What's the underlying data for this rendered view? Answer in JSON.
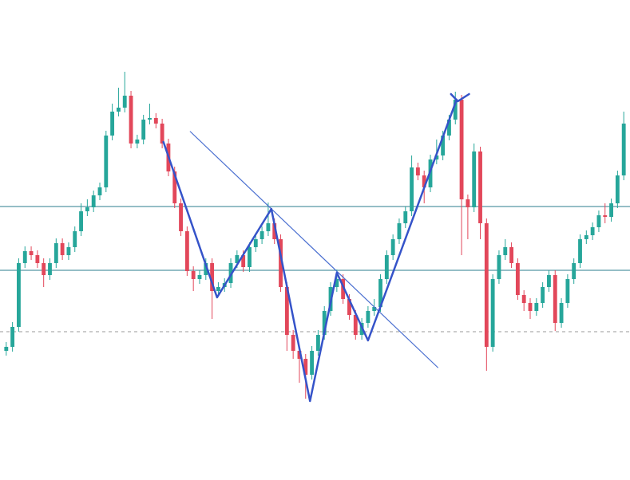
{
  "chart_data": {
    "type": "candlestick",
    "up_color": "#26a69a",
    "down_color": "#e2475a",
    "xlim": [
      -1,
      100
    ],
    "ylim": [
      0,
      600
    ],
    "open": [
      160,
      165,
      190,
      270,
      285,
      280,
      270,
      255,
      270,
      295,
      280,
      290,
      310,
      335,
      340,
      355,
      365,
      430,
      460,
      465,
      480,
      420,
      425,
      450,
      452,
      445,
      420,
      385,
      345,
      310,
      260,
      250,
      255,
      270,
      235,
      240,
      245,
      270,
      280,
      265,
      290,
      300,
      310,
      320,
      300,
      240,
      180,
      160,
      150,
      130,
      160,
      180,
      210,
      240,
      250,
      225,
      205,
      180,
      195,
      210,
      215,
      250,
      280,
      300,
      320,
      335,
      390,
      380,
      365,
      400,
      405,
      430,
      450,
      475,
      350,
      340,
      410,
      320,
      165,
      250,
      280,
      290,
      270,
      230,
      220,
      210,
      220,
      240,
      255,
      195,
      220,
      250,
      270,
      300,
      305,
      315,
      330,
      328,
      345,
      380
    ],
    "high": [
      171,
      196,
      276,
      291,
      291,
      286,
      276,
      276,
      301,
      301,
      296,
      316,
      345,
      350,
      361,
      371,
      436,
      470,
      490,
      510,
      486,
      431,
      456,
      470,
      458,
      451,
      426,
      391,
      351,
      316,
      266,
      261,
      276,
      276,
      246,
      251,
      276,
      286,
      286,
      296,
      306,
      316,
      346,
      326,
      306,
      246,
      186,
      166,
      156,
      166,
      186,
      216,
      246,
      262,
      256,
      231,
      211,
      201,
      216,
      225,
      256,
      286,
      306,
      326,
      341,
      405,
      396,
      386,
      406,
      425,
      436,
      456,
      485,
      481,
      356,
      420,
      416,
      326,
      256,
      286,
      300,
      296,
      276,
      236,
      226,
      226,
      246,
      261,
      261,
      226,
      256,
      276,
      306,
      311,
      321,
      336,
      345,
      351,
      386,
      460
    ],
    "low": [
      154,
      159,
      184,
      264,
      274,
      264,
      240,
      249,
      264,
      274,
      274,
      284,
      304,
      329,
      334,
      349,
      359,
      424,
      454,
      459,
      414,
      414,
      419,
      444,
      439,
      414,
      379,
      339,
      304,
      254,
      235,
      244,
      249,
      200,
      229,
      234,
      239,
      264,
      259,
      259,
      284,
      294,
      304,
      294,
      234,
      160,
      150,
      120,
      100,
      124,
      154,
      174,
      204,
      234,
      219,
      199,
      174,
      174,
      189,
      204,
      209,
      244,
      274,
      294,
      314,
      329,
      374,
      345,
      359,
      394,
      399,
      424,
      444,
      280,
      300,
      334,
      300,
      135,
      159,
      244,
      274,
      264,
      224,
      210,
      200,
      204,
      214,
      234,
      185,
      189,
      214,
      244,
      264,
      294,
      299,
      309,
      320,
      322,
      339,
      374
    ],
    "close": [
      165,
      190,
      270,
      285,
      280,
      270,
      255,
      270,
      295,
      280,
      290,
      310,
      335,
      340,
      355,
      365,
      430,
      460,
      465,
      480,
      420,
      425,
      450,
      452,
      445,
      420,
      385,
      345,
      310,
      260,
      250,
      255,
      270,
      235,
      240,
      245,
      270,
      280,
      265,
      290,
      300,
      310,
      320,
      300,
      240,
      180,
      160,
      150,
      130,
      160,
      180,
      210,
      240,
      250,
      225,
      205,
      180,
      195,
      210,
      215,
      250,
      280,
      300,
      320,
      335,
      390,
      380,
      365,
      400,
      405,
      430,
      450,
      475,
      350,
      340,
      410,
      320,
      165,
      250,
      280,
      290,
      270,
      230,
      220,
      210,
      220,
      240,
      255,
      195,
      220,
      250,
      270,
      300,
      305,
      315,
      330,
      328,
      345,
      380,
      445
    ],
    "hlines": [
      {
        "value": 341,
        "color": "#2b7d8c",
        "style": "solid"
      },
      {
        "value": 261,
        "color": "#2b7d8c",
        "style": "solid"
      },
      {
        "value": 184,
        "color": "#9a9a9a",
        "style": "dashed"
      }
    ],
    "zigzag": {
      "color": "#3553c9",
      "x": [
        25.2,
        33.8,
        42.5,
        48.7,
        53,
        58,
        72.2
      ],
      "y": [
        422,
        227,
        338,
        97,
        258,
        173,
        475
      ]
    },
    "trendline": {
      "color": "#4a6fd0",
      "x": [
        29.5,
        69.2
      ],
      "y": [
        435,
        139
      ]
    },
    "marker": {
      "color": "#3553c9",
      "x": [
        71.3,
        72.4,
        74.2
      ],
      "y": [
        482,
        473,
        482
      ]
    }
  }
}
